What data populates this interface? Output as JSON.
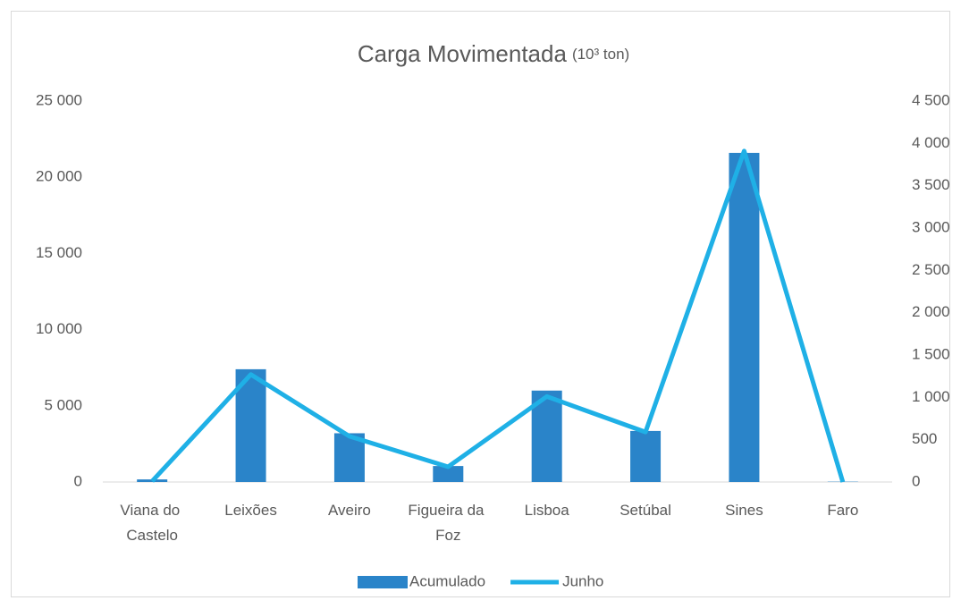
{
  "chart_data": {
    "type": "bar_line",
    "title": "Carga Movimentada",
    "subtitle": "(10³ ton)",
    "categories": [
      "Viana do Castelo",
      "Leixões",
      "Aveiro",
      "Figueira da Foz",
      "Lisboa",
      "Setúbal",
      "Sines",
      "Faro"
    ],
    "series": [
      {
        "name": "Acumulado",
        "type": "bar",
        "color": "#2a84c9",
        "axis": "y",
        "values": [
          170,
          7400,
          3200,
          1050,
          6000,
          3350,
          21600,
          20
        ]
      },
      {
        "name": "Junho",
        "type": "line",
        "color": "#1fb0e6",
        "axis": "y2",
        "values": [
          10,
          1270,
          540,
          180,
          1010,
          590,
          3910,
          0
        ]
      }
    ],
    "ylim": [
      0,
      25000
    ],
    "yticks": [
      0,
      {
        "value": 5000,
        "label": "5 000"
      },
      {
        "value": 10000,
        "label": "10 000"
      },
      {
        "value": 15000,
        "label": "15 000"
      },
      {
        "value": 20000,
        "label": "20 000"
      },
      {
        "value": 25000,
        "label": "25 000"
      }
    ],
    "y2lim": [
      0,
      4500
    ],
    "y2ticks": [
      0,
      500,
      {
        "value": 1000,
        "label": "1 000"
      },
      {
        "value": 1500,
        "label": "1 500"
      },
      {
        "value": 2000,
        "label": "2 000"
      },
      {
        "value": 2500,
        "label": "2 500"
      },
      {
        "value": 3000,
        "label": "3 000"
      },
      {
        "value": 3500,
        "label": "3 500"
      },
      {
        "value": 4000,
        "label": "4 000"
      },
      {
        "value": 4500,
        "label": "4 500"
      }
    ],
    "grid": false,
    "legend": "bottom"
  }
}
